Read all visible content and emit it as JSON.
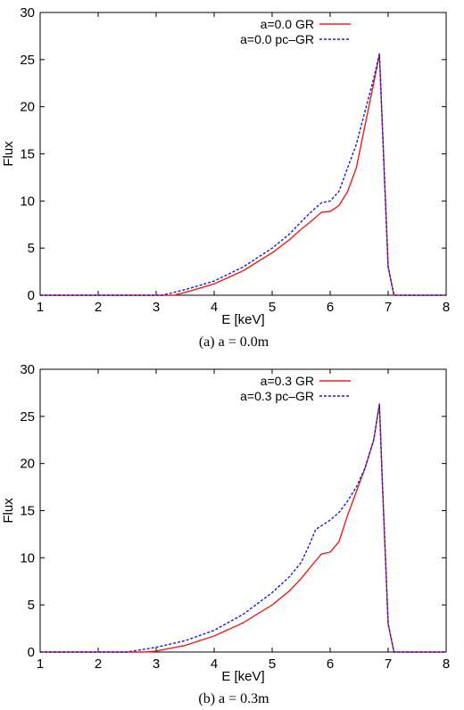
{
  "figure": {
    "panels": [
      {
        "caption": "(a) a = 0.0m"
      },
      {
        "caption": "(b) a = 0.3m"
      }
    ]
  },
  "chart_data": [
    {
      "type": "line",
      "xlabel": "E [keV]",
      "ylabel": "Flux",
      "xlim": [
        1,
        8
      ],
      "ylim": [
        0,
        30
      ],
      "xticks": [
        1,
        2,
        3,
        4,
        5,
        6,
        7,
        8
      ],
      "yticks": [
        0,
        5,
        10,
        15,
        20,
        25,
        30
      ],
      "legend_position": "top-right",
      "series": [
        {
          "name": "a=0.0 GR",
          "color": "#e8211f",
          "dash": "solid",
          "x": [
            1,
            2,
            3,
            3.3,
            3.5,
            4.0,
            4.5,
            5.0,
            5.3,
            5.5,
            5.7,
            5.85,
            6.0,
            6.15,
            6.3,
            6.45,
            6.6,
            6.75,
            6.85,
            6.9,
            7.0,
            7.1,
            7.5,
            8
          ],
          "y": [
            0,
            0,
            0,
            0,
            0.3,
            1.2,
            2.6,
            4.5,
            5.9,
            7.0,
            8.0,
            8.8,
            8.9,
            9.5,
            11.0,
            13.5,
            18.0,
            22.5,
            25.6,
            18.0,
            3.0,
            0,
            0,
            0
          ]
        },
        {
          "name": "a=0.0 pc–GR",
          "color": "#1a1ad6",
          "dash": "dashed",
          "x": [
            1,
            2,
            3,
            3.1,
            3.5,
            4.0,
            4.5,
            5.0,
            5.3,
            5.5,
            5.7,
            5.85,
            6.0,
            6.15,
            6.3,
            6.45,
            6.6,
            6.75,
            6.85,
            6.9,
            7.0,
            7.1,
            7.5,
            8
          ],
          "y": [
            0,
            0,
            0,
            0,
            0.6,
            1.5,
            3.0,
            5.0,
            6.5,
            7.8,
            9.0,
            9.8,
            10.0,
            11.0,
            13.5,
            16.0,
            19.5,
            23.0,
            25.6,
            18.0,
            3.0,
            0,
            0,
            0
          ]
        }
      ]
    },
    {
      "type": "line",
      "xlabel": "E [keV]",
      "ylabel": "Flux",
      "xlim": [
        1,
        8
      ],
      "ylim": [
        0,
        30
      ],
      "xticks": [
        1,
        2,
        3,
        4,
        5,
        6,
        7,
        8
      ],
      "yticks": [
        0,
        5,
        10,
        15,
        20,
        25,
        30
      ],
      "legend_position": "top-right",
      "series": [
        {
          "name": "a=0.3 GR",
          "color": "#e8211f",
          "dash": "solid",
          "x": [
            1,
            2,
            2.8,
            3.0,
            3.5,
            4.0,
            4.5,
            5.0,
            5.3,
            5.5,
            5.7,
            5.85,
            6.0,
            6.15,
            6.3,
            6.45,
            6.6,
            6.75,
            6.85,
            6.9,
            7.0,
            7.1,
            7.5,
            8
          ],
          "y": [
            0,
            0,
            0,
            0.1,
            0.7,
            1.7,
            3.1,
            5.0,
            6.5,
            7.8,
            9.3,
            10.4,
            10.6,
            11.7,
            14.5,
            17.0,
            19.5,
            22.5,
            26.3,
            18.0,
            3.0,
            0,
            0,
            0
          ]
        },
        {
          "name": "a=0.3 pc–GR",
          "color": "#1a1ad6",
          "dash": "dashed",
          "x": [
            1,
            2,
            2.5,
            3.0,
            3.5,
            4.0,
            4.5,
            5.0,
            5.3,
            5.5,
            5.65,
            5.75,
            6.0,
            6.15,
            6.3,
            6.45,
            6.6,
            6.75,
            6.85,
            6.9,
            7.0,
            7.1,
            7.5,
            8
          ],
          "y": [
            0,
            0,
            0,
            0.5,
            1.2,
            2.3,
            4.0,
            6.3,
            8.0,
            9.5,
            11.5,
            13.0,
            14.0,
            14.8,
            16.0,
            17.5,
            19.5,
            22.5,
            26.3,
            18.0,
            3.0,
            0,
            0,
            0
          ]
        }
      ]
    }
  ]
}
